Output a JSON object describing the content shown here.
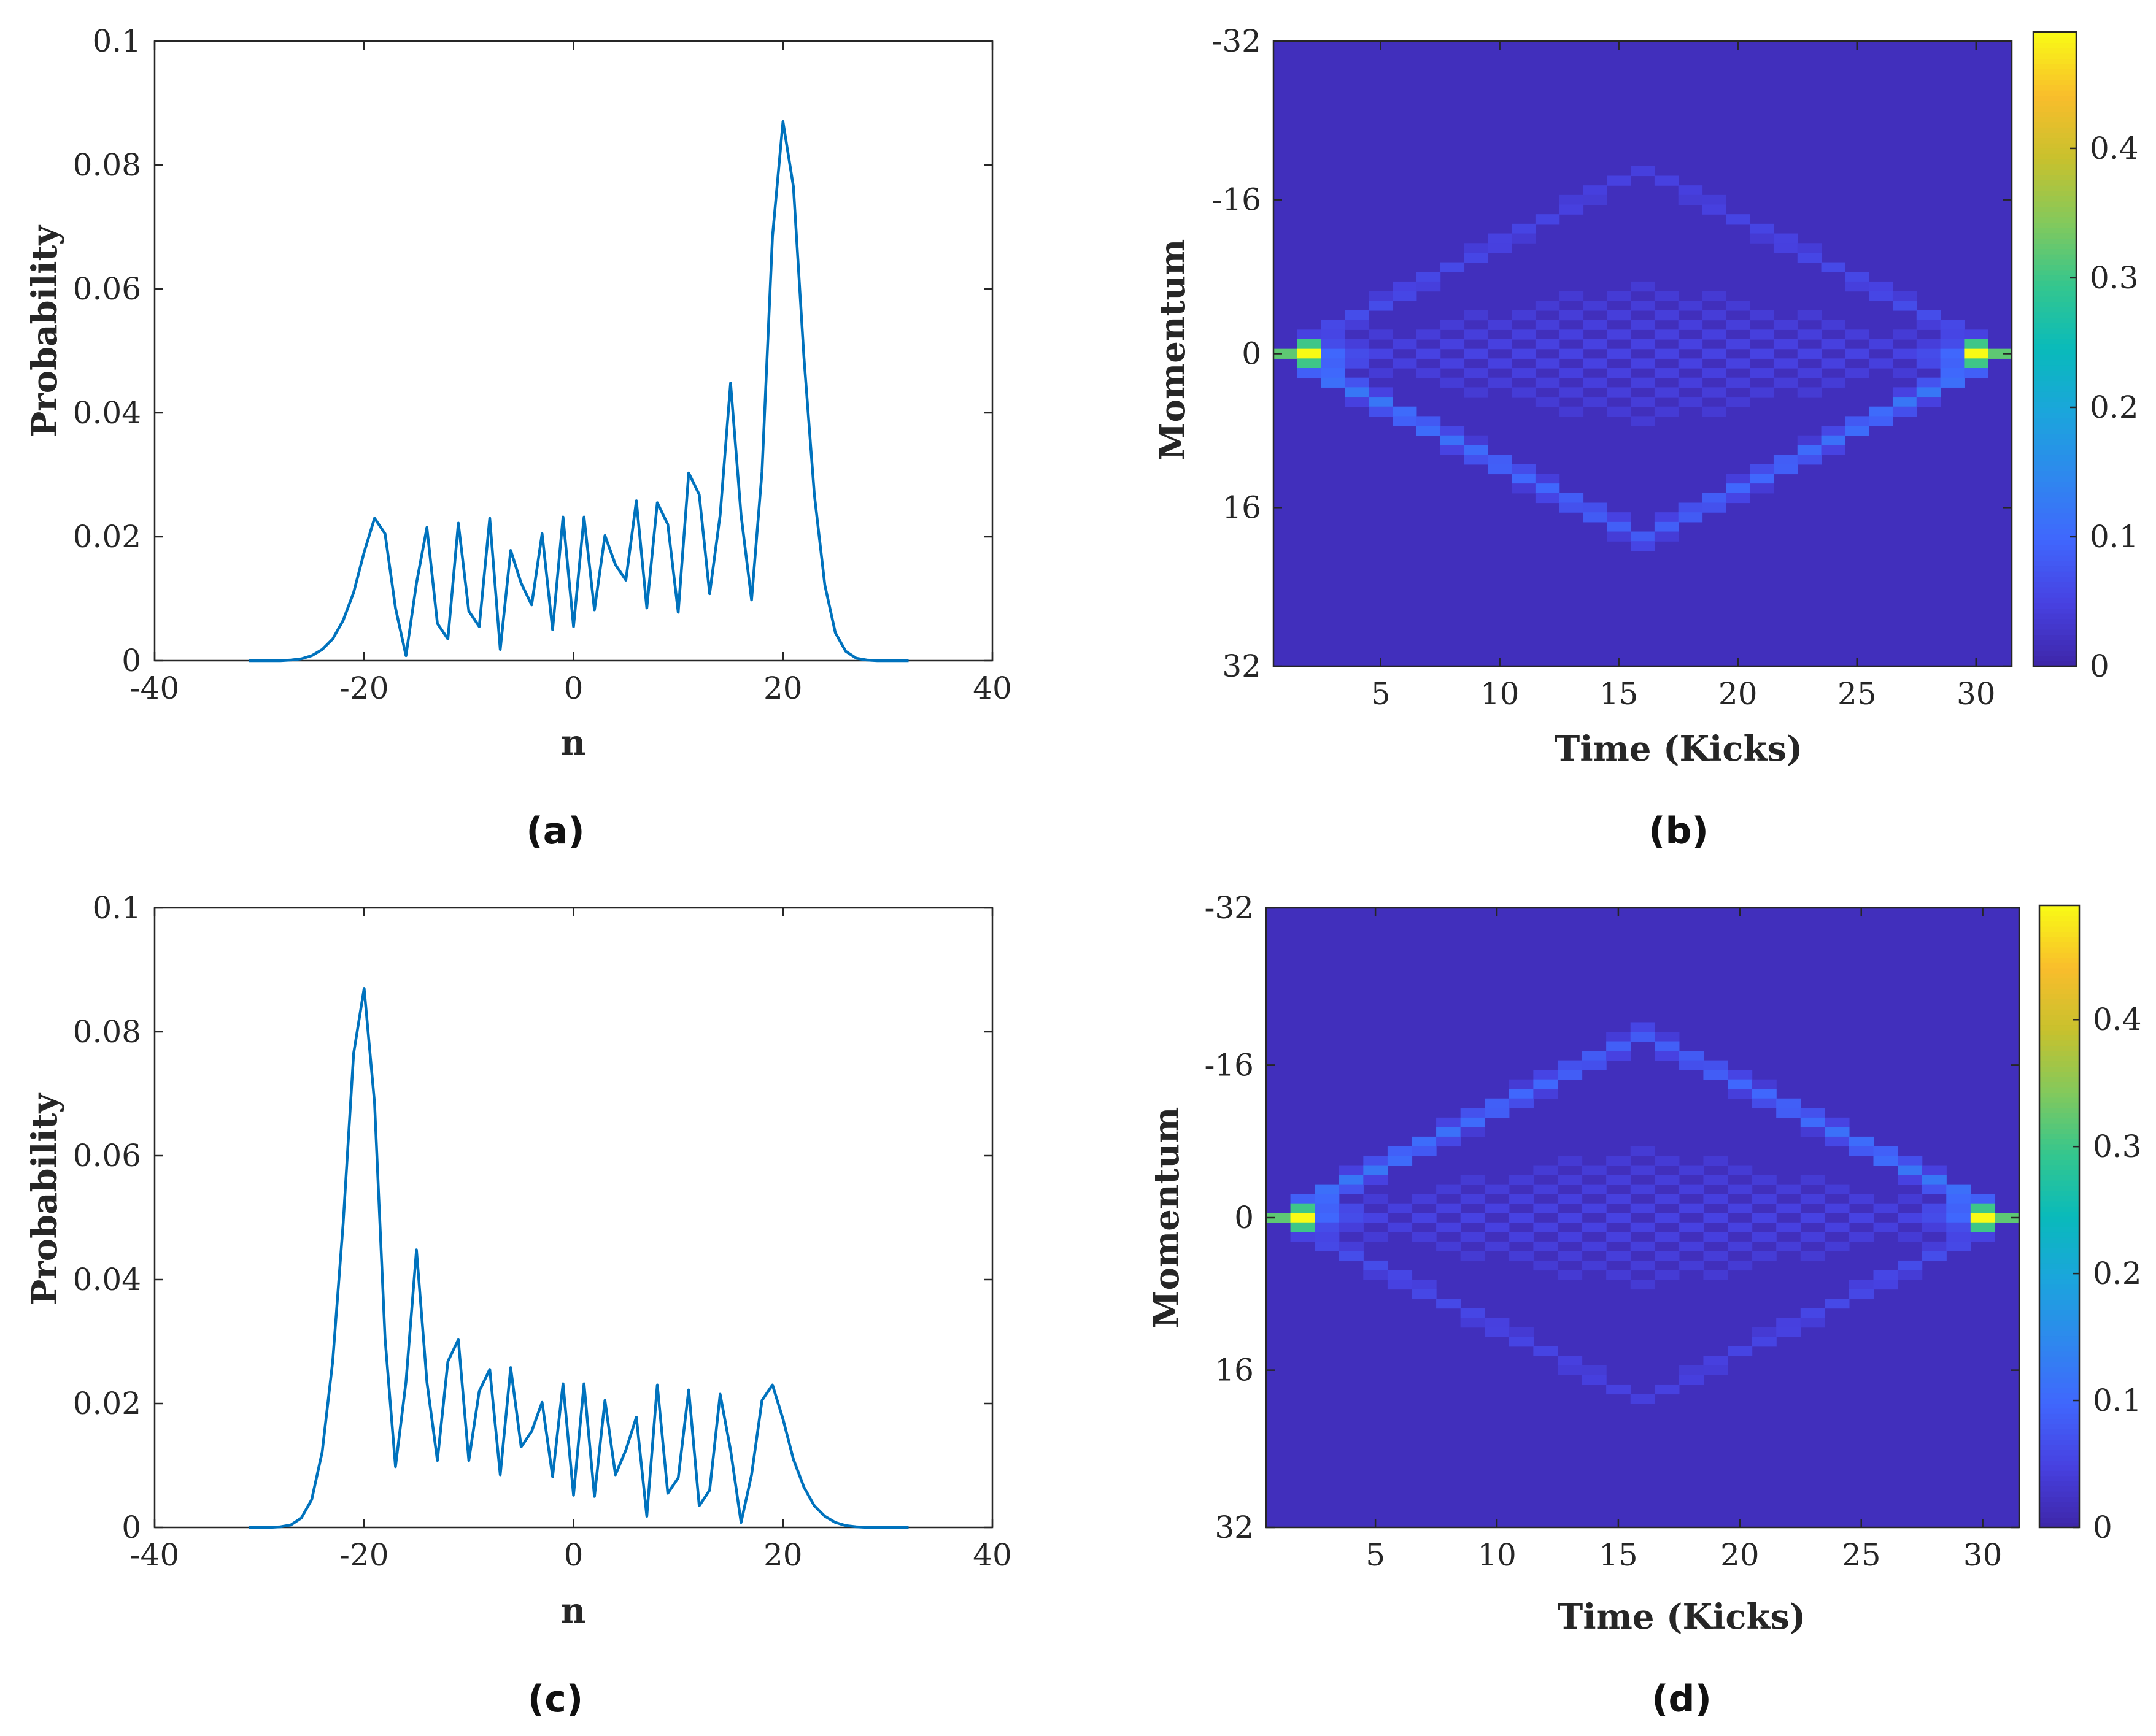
{
  "chart_data": [
    {
      "panel": "(a)",
      "type": "line",
      "title": "",
      "xlabel": "n",
      "ylabel": "Probability",
      "xlim": [
        -40,
        40
      ],
      "ylim": [
        0,
        0.1
      ],
      "xticks": [
        -40,
        -20,
        0,
        20,
        40
      ],
      "xtick_labels": [
        "-40",
        "-20",
        "0",
        "20",
        "40"
      ],
      "yticks": [
        0,
        0.02,
        0.04,
        0.06,
        0.08,
        0.1
      ],
      "ytick_labels": [
        "0",
        "0.02",
        "0.04",
        "0.06",
        "0.08",
        "0.1"
      ],
      "series_color": "#0072BD",
      "x": [
        -31,
        -30,
        -29,
        -28,
        -27,
        -26,
        -25,
        -24,
        -23,
        -22,
        -21,
        -20,
        -19,
        -18,
        -17,
        -16,
        -15,
        -14,
        -13,
        -12,
        -11,
        -10,
        -9,
        -8,
        -7,
        -6,
        -5,
        -4,
        -3,
        -2,
        -1,
        0,
        1,
        2,
        3,
        4,
        5,
        6,
        7,
        8,
        9,
        10,
        11,
        12,
        13,
        14,
        15,
        16,
        17,
        18,
        19,
        20,
        21,
        22,
        23,
        24,
        25,
        26,
        27,
        28,
        29,
        30,
        31,
        32
      ],
      "y": [
        0,
        0,
        0,
        0,
        0.0001,
        0.0003,
        0.0008,
        0.0018,
        0.0035,
        0.0065,
        0.011,
        0.0175,
        0.023,
        0.0205,
        0.0085,
        0.0008,
        0.0125,
        0.0215,
        0.006,
        0.0035,
        0.0222,
        0.008,
        0.0055,
        0.023,
        0.0018,
        0.0178,
        0.0125,
        0.009,
        0.0205,
        0.005,
        0.0232,
        0.0055,
        0.0232,
        0.0082,
        0.0202,
        0.0155,
        0.013,
        0.0258,
        0.0085,
        0.0255,
        0.022,
        0.0078,
        0.0303,
        0.0268,
        0.0108,
        0.0235,
        0.0448,
        0.0235,
        0.0098,
        0.0305,
        0.0685,
        0.087,
        0.0765,
        0.049,
        0.0268,
        0.0122,
        0.0045,
        0.0015,
        0.0004,
        0.0001,
        0,
        0,
        0,
        0
      ]
    },
    {
      "panel": "(b)",
      "type": "heatmap",
      "xlabel": "Time (Kicks)",
      "ylabel": "Momentum",
      "x_range": [
        1,
        31
      ],
      "y_range": [
        -32,
        32
      ],
      "xticks": [
        5,
        10,
        15,
        20,
        25,
        30
      ],
      "xtick_labels": [
        "5",
        "10",
        "15",
        "20",
        "25",
        "30"
      ],
      "yticks": [
        -32,
        -16,
        0,
        16,
        32
      ],
      "ytick_labels": [
        "-32",
        "-16",
        "0",
        "16",
        "32"
      ],
      "colorbar_range": [
        0,
        0.49
      ],
      "colorbar_ticks": [
        0,
        0.1,
        0.2,
        0.3,
        0.4
      ],
      "colorbar_tick_labels": [
        "0",
        "0.1",
        "0.2",
        "0.3",
        "0.4"
      ],
      "colormap": "parula",
      "description_of_pattern": "diamond spreading from momentum 0 at t=1 to extremes near t=16 and back; brighter ballistic front toward positive momentum",
      "upper_peak_momentum": -20,
      "lower_peak_momentum": 20,
      "upper_edge_strength": 0.055,
      "lower_edge_strength": 0.12
    },
    {
      "panel": "(c)",
      "type": "line",
      "title": "",
      "xlabel": "n",
      "ylabel": "Probability",
      "xlim": [
        -40,
        40
      ],
      "ylim": [
        0,
        0.1
      ],
      "xticks": [
        -40,
        -20,
        0,
        20,
        40
      ],
      "xtick_labels": [
        "-40",
        "-20",
        "0",
        "20",
        "40"
      ],
      "yticks": [
        0,
        0.02,
        0.04,
        0.06,
        0.08,
        0.1
      ],
      "ytick_labels": [
        "0",
        "0.02",
        "0.04",
        "0.06",
        "0.08",
        "0.1"
      ],
      "series_color": "#0072BD",
      "x": [
        -31,
        -30,
        -29,
        -28,
        -27,
        -26,
        -25,
        -24,
        -23,
        -22,
        -21,
        -20,
        -19,
        -18,
        -17,
        -16,
        -15,
        -14,
        -13,
        -12,
        -11,
        -10,
        -9,
        -8,
        -7,
        -6,
        -5,
        -4,
        -3,
        -2,
        -1,
        0,
        1,
        2,
        3,
        4,
        5,
        6,
        7,
        8,
        9,
        10,
        11,
        12,
        13,
        14,
        15,
        16,
        17,
        18,
        19,
        20,
        21,
        22,
        23,
        24,
        25,
        26,
        27,
        28,
        29,
        30,
        31,
        32
      ],
      "y": [
        0,
        0,
        0,
        0.0001,
        0.0004,
        0.0015,
        0.0045,
        0.0122,
        0.0268,
        0.049,
        0.0765,
        0.087,
        0.0685,
        0.0305,
        0.0098,
        0.0235,
        0.0448,
        0.0235,
        0.0108,
        0.0268,
        0.0303,
        0.0108,
        0.022,
        0.0255,
        0.0085,
        0.0258,
        0.013,
        0.0155,
        0.0202,
        0.0082,
        0.0232,
        0.0052,
        0.0232,
        0.005,
        0.0205,
        0.0085,
        0.0125,
        0.0178,
        0.0018,
        0.023,
        0.0055,
        0.008,
        0.0222,
        0.0035,
        0.006,
        0.0215,
        0.0125,
        0.0008,
        0.0085,
        0.0205,
        0.023,
        0.0175,
        0.011,
        0.0065,
        0.0035,
        0.0018,
        0.0008,
        0.0003,
        0.0001,
        0,
        0,
        0,
        0,
        0
      ]
    },
    {
      "panel": "(d)",
      "type": "heatmap",
      "xlabel": "Time (Kicks)",
      "ylabel": "Momentum",
      "x_range": [
        1,
        31
      ],
      "y_range": [
        -32,
        32
      ],
      "xticks": [
        5,
        10,
        15,
        20,
        25,
        30
      ],
      "xtick_labels": [
        "5",
        "10",
        "15",
        "20",
        "25",
        "30"
      ],
      "yticks": [
        -32,
        -16,
        0,
        16,
        32
      ],
      "ytick_labels": [
        "-32",
        "-16",
        "0",
        "16",
        "32"
      ],
      "colorbar_range": [
        0,
        0.49
      ],
      "colorbar_ticks": [
        0,
        0.1,
        0.2,
        0.3,
        0.4
      ],
      "colorbar_tick_labels": [
        "0",
        "0.1",
        "0.2",
        "0.3",
        "0.4"
      ],
      "colormap": "parula",
      "description_of_pattern": "diamond spreading from momentum 0 at t=1 to extremes near t=16 and back; brighter ballistic front toward negative momentum",
      "upper_peak_momentum": -20,
      "lower_peak_momentum": 20,
      "upper_edge_strength": 0.12,
      "lower_edge_strength": 0.055
    }
  ]
}
